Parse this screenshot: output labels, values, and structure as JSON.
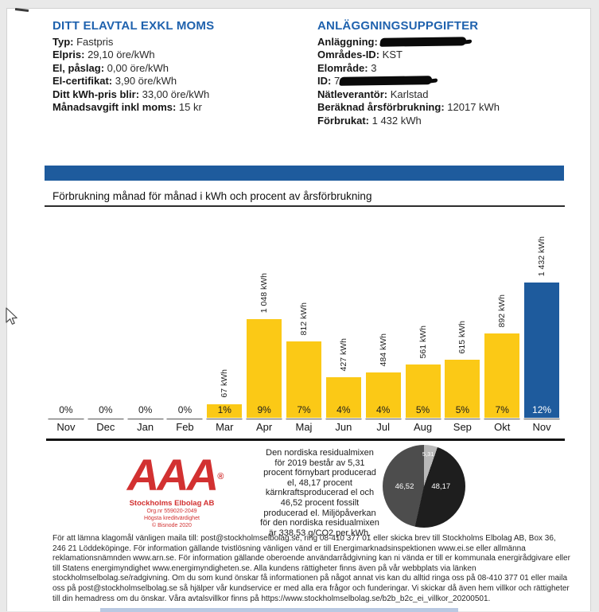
{
  "contract": {
    "title": "DITT ELAVTAL EXKL MOMS",
    "rows": [
      {
        "label": "Typ:",
        "value": "Fastpris"
      },
      {
        "label": "Elpris:",
        "value": "29,10 öre/kWh"
      },
      {
        "label": "El, påslag:",
        "value": "0,00 öre/kWh"
      },
      {
        "label": "El-certifikat:",
        "value": "3,90 öre/kWh"
      },
      {
        "label": "Ditt kWh-pris blir:",
        "value": "33,00 öre/kWh"
      },
      {
        "label": "Månadsavgift inkl moms:",
        "value": "15 kr"
      }
    ]
  },
  "facility": {
    "title": "ANLÄGGNINGSUPPGIFTER",
    "rows": [
      {
        "label": "Anläggning:",
        "value": "",
        "redacted": true,
        "redact_width": 108
      },
      {
        "label": "Områdes-ID:",
        "value": "KST"
      },
      {
        "label": "Elområde:",
        "value": "3"
      },
      {
        "label": "ID:",
        "value": "7",
        "redacted": true,
        "redact_width": 116
      },
      {
        "label": "Nätleverantör:",
        "value": "Karlstad"
      },
      {
        "label": "Beräknad årsförbrukning:",
        "value": "12017 kWh"
      },
      {
        "label": "Förbrukat:",
        "value": "1 432 kWh"
      }
    ]
  },
  "chart_section_title": "Förbrukning månad för månad i kWh och procent av årsförbrukning",
  "chart_data": [
    {
      "type": "bar",
      "title": "Förbrukning månad för månad i kWh och procent av årsförbrukning",
      "categories": [
        "Nov",
        "Dec",
        "Jan",
        "Feb",
        "Mar",
        "Apr",
        "Maj",
        "Jun",
        "Jul",
        "Aug",
        "Sep",
        "Okt",
        "Nov"
      ],
      "values": [
        0,
        0,
        0,
        0,
        67,
        1048,
        812,
        427,
        484,
        561,
        615,
        892,
        1432
      ],
      "value_labels": [
        "",
        "",
        "",
        "",
        "67 kWh",
        "1 048 kWh",
        "812 kWh",
        "427 kWh",
        "484 kWh",
        "561 kWh",
        "615 kWh",
        "892 kWh",
        "1 432 kWh"
      ],
      "percent_labels": [
        "0%",
        "0%",
        "0%",
        "0%",
        "1%",
        "9%",
        "7%",
        "4%",
        "4%",
        "5%",
        "5%",
        "7%",
        "12%"
      ],
      "ylim": [
        0,
        1432
      ],
      "bar_color": "#fbc916",
      "highlight_index": 12,
      "highlight_color": "#1e5b9d",
      "grid": false,
      "legend": "none"
    },
    {
      "type": "pie",
      "labels": [
        "5,31",
        "48,17",
        "46,52"
      ],
      "values": [
        5.31,
        48.17,
        46.52
      ],
      "colors": [
        "#b9b9b9",
        "#1e1e1e",
        "#4d4d4d"
      ],
      "legend": "none"
    }
  ],
  "rating_badge": {
    "letters": "AAA",
    "registered_mark": "®",
    "company": "Stockholms Elbolag AB",
    "org_nr": "Org.nr 559020-2049",
    "rating_text": "Högsta kreditvärdighet",
    "copyright": "© Bisnode 2020",
    "color": "#d23131"
  },
  "residual_mix_text": "Den nordiska residualmixen för 2019 består av 5,31 procent förnybart producerad el, 48,17 procent kärnkraftsproducerad el och 46,52 procent fossilt producerad el. Miljöpåverkan för den nordiska residualmixen är 338,53 g/CO2 per kWh.",
  "footer_text": "För att lämna klagomål vänligen maila till: post@stockholmselbolag.se, ring 08-410 377 01 eller skicka brev till Stockholms Elbolag AB, Box 36, 246 21 Löddeköpinge. För information gällande tvistlösning vänligen vänd er till Energimarknadsinspektionen www.ei.se eller allmänna reklamationsnämnden www.arn.se. För information gällande oberoende användarrådgivning kan ni vända er till er kommunala energirådgivare eller till Statens energimyndighet www.energimyndigheten.se. Alla kundens rättigheter finns även på vår webbplats via länken stockholmselbolag.se/radgivning. Om du som kund önskar få informationen på något annat vis kan du alltid ringa oss på 08-410 377 01 eller maila oss på post@stockholmselbolag.se så hjälper vår kundservice er med alla era frågor och funderingar. Vi skickar då även hem villkor och rättigheter till din hemadress om du önskar. Våra avtalsvillkor finns på https://www.stockholmselbolag.se/b2b_b2c_ei_villkor_20200501.",
  "accent_colors": {
    "heading_blue": "#1f62ae",
    "band_blue": "#1e5b9d",
    "bar_yellow": "#fbc916"
  }
}
